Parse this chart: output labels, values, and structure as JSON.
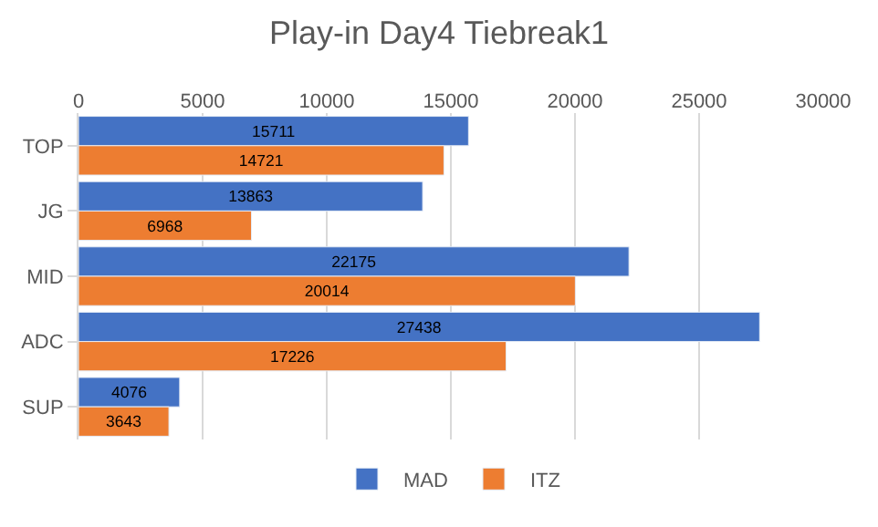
{
  "chart_data": {
    "type": "bar",
    "orientation": "horizontal",
    "title": "Play-in Day4 Tiebreak1",
    "categories": [
      "TOP",
      "JG",
      "MID",
      "ADC",
      "SUP"
    ],
    "series": [
      {
        "name": "MAD",
        "color": "#4472c4",
        "values": [
          15711,
          13863,
          22175,
          27438,
          4076
        ]
      },
      {
        "name": "ITZ",
        "color": "#ed7d31",
        "values": [
          14721,
          6968,
          20014,
          17226,
          3643
        ]
      }
    ],
    "xlim": [
      0,
      30000
    ],
    "xticks": [
      0,
      5000,
      10000,
      15000,
      20000,
      25000,
      30000
    ],
    "grid": "x",
    "legend": "bottom",
    "data_labels": true
  }
}
